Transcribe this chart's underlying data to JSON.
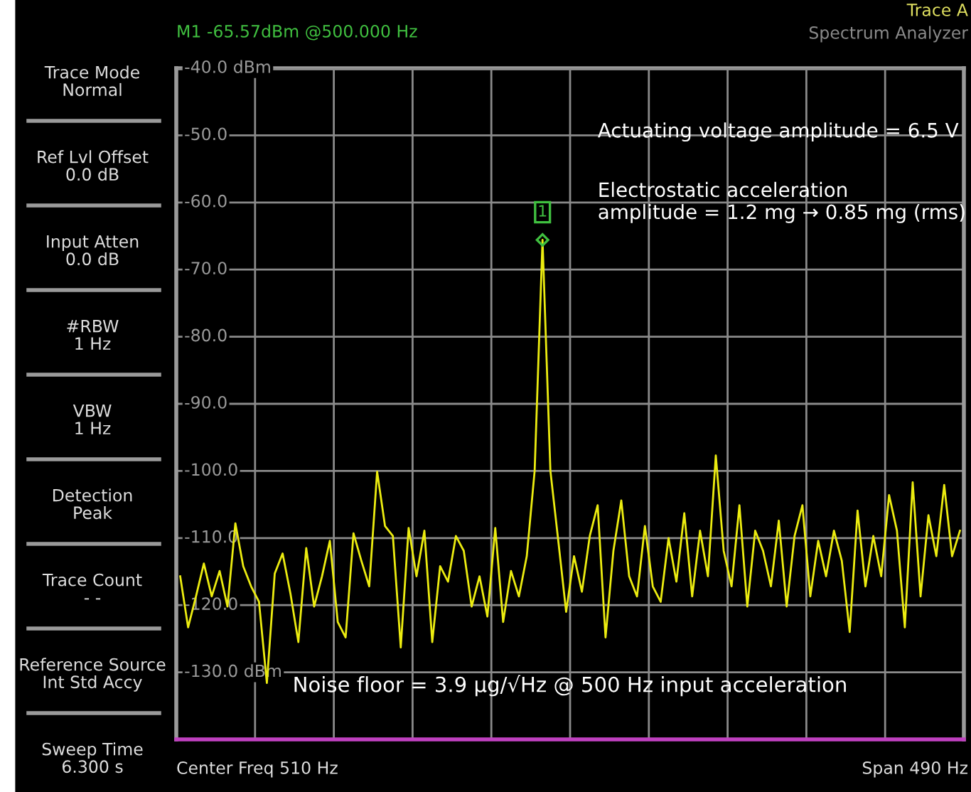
{
  "chart_data": {
    "type": "line",
    "categories": [
      null,
      null,
      null,
      null,
      null,
      null,
      null,
      null,
      null,
      null,
      null,
      null,
      null,
      null,
      null,
      null,
      null,
      null,
      null,
      null,
      null,
      null,
      null,
      null,
      null,
      null,
      null,
      null,
      null,
      null,
      null,
      null,
      null,
      null,
      null,
      null,
      null,
      null,
      null,
      null,
      null,
      null,
      null,
      null,
      null,
      null,
      null,
      null,
      null,
      null,
      null,
      null,
      null,
      null,
      null,
      null,
      null,
      null,
      null,
      null,
      null,
      null,
      null,
      null,
      null,
      null,
      null,
      null,
      null,
      null,
      null,
      null,
      null,
      null,
      null,
      null,
      null,
      null,
      null,
      null,
      null,
      null,
      null,
      null,
      null,
      null,
      null,
      null,
      null,
      null,
      null,
      null,
      null,
      null,
      null,
      null,
      null,
      null,
      null,
      null
    ],
    "series": [
      {
        "color": "#ecec10",
        "values": [
          -115.7,
          -123.3,
          -118.7,
          -113.8,
          -118.7,
          -114.9,
          -120.2,
          -107.8,
          -114.2,
          -117.2,
          -119.5,
          -131.6,
          -115.3,
          -112.3,
          -118.3,
          -125.5,
          -111.5,
          -120.2,
          -115.7,
          -110.4,
          -122.5,
          -124.8,
          -109.3,
          -113.4,
          -117.2,
          -100.1,
          -108.2,
          -109.7,
          -126.3,
          -108.5,
          -115.7,
          -108.9,
          -125.5,
          -114.2,
          -116.5,
          -109.7,
          -111.9,
          -120.2,
          -115.7,
          -121.7,
          -108.5,
          -122.5,
          -114.9,
          -118.7,
          -112.7,
          -100.0,
          -65.57,
          -100.0,
          -110.4,
          -121.0,
          -112.7,
          -118.0,
          -109.7,
          -105.1,
          -124.8,
          -111.9,
          -104.4,
          -115.7,
          -118.7,
          -108.2,
          -117.2,
          -119.5,
          -110.0,
          -116.5,
          -106.3,
          -118.7,
          -108.9,
          -115.7,
          -97.7,
          -111.9,
          -117.2,
          -105.1,
          -120.2,
          -108.9,
          -111.9,
          -117.2,
          -107.4,
          -120.2,
          -109.7,
          -105.1,
          -118.7,
          -110.4,
          -115.7,
          -108.9,
          -113.4,
          -124.0,
          -105.9,
          -117.2,
          -109.7,
          -115.7,
          -103.6,
          -108.9,
          -123.3,
          -101.7,
          -118.7,
          -106.6,
          -112.7,
          -102.1,
          -112.7,
          -108.9
        ]
      }
    ],
    "ylim": [
      -140,
      -40
    ],
    "yticks": [
      {
        "value": -40,
        "label": "-40.0 dBm"
      },
      {
        "value": -50,
        "label": "-50.0"
      },
      {
        "value": -60,
        "label": "-60.0"
      },
      {
        "value": -70,
        "label": "-70.0"
      },
      {
        "value": -80,
        "label": "-80.0"
      },
      {
        "value": -90,
        "label": "-90.0"
      },
      {
        "value": -100,
        "label": "-100.0"
      },
      {
        "value": -110,
        "label": "-110.0"
      },
      {
        "value": -120,
        "label": "-120.0"
      },
      {
        "value": -130,
        "label": "-130.0 dBm"
      },
      {
        "value": -140,
        "label": null
      }
    ],
    "grid": true,
    "legend": false,
    "marker": "none",
    "line_style": "solid",
    "annotations": [
      "Trace Mode\nNormal",
      "Ref Lvl Offset\n0.0 dB",
      "Input Atten\n0.0 dB",
      "#RBW\n1 Hz",
      "VBW\n1 Hz",
      "Detection\nPeak",
      "Trace Count\n- -",
      "Reference Source\nInt Std Accy",
      "Sweep Time\n6.300 s",
      "M1 -65.57dBm @500.000 Hz",
      "Trace A",
      "Spectrum Analyzer",
      "Center Freq 510 Hz",
      "Span 490 Hz",
      "Actuating voltage amplitude = 6.5 V",
      "Electrostatic acceleration\namplitude = 1.2 mg → 0.85 mg (rms)",
      "Noise floor = 3.9 µg/√Hz @ 500 Hz input acceleration",
      "1"
    ]
  }
}
